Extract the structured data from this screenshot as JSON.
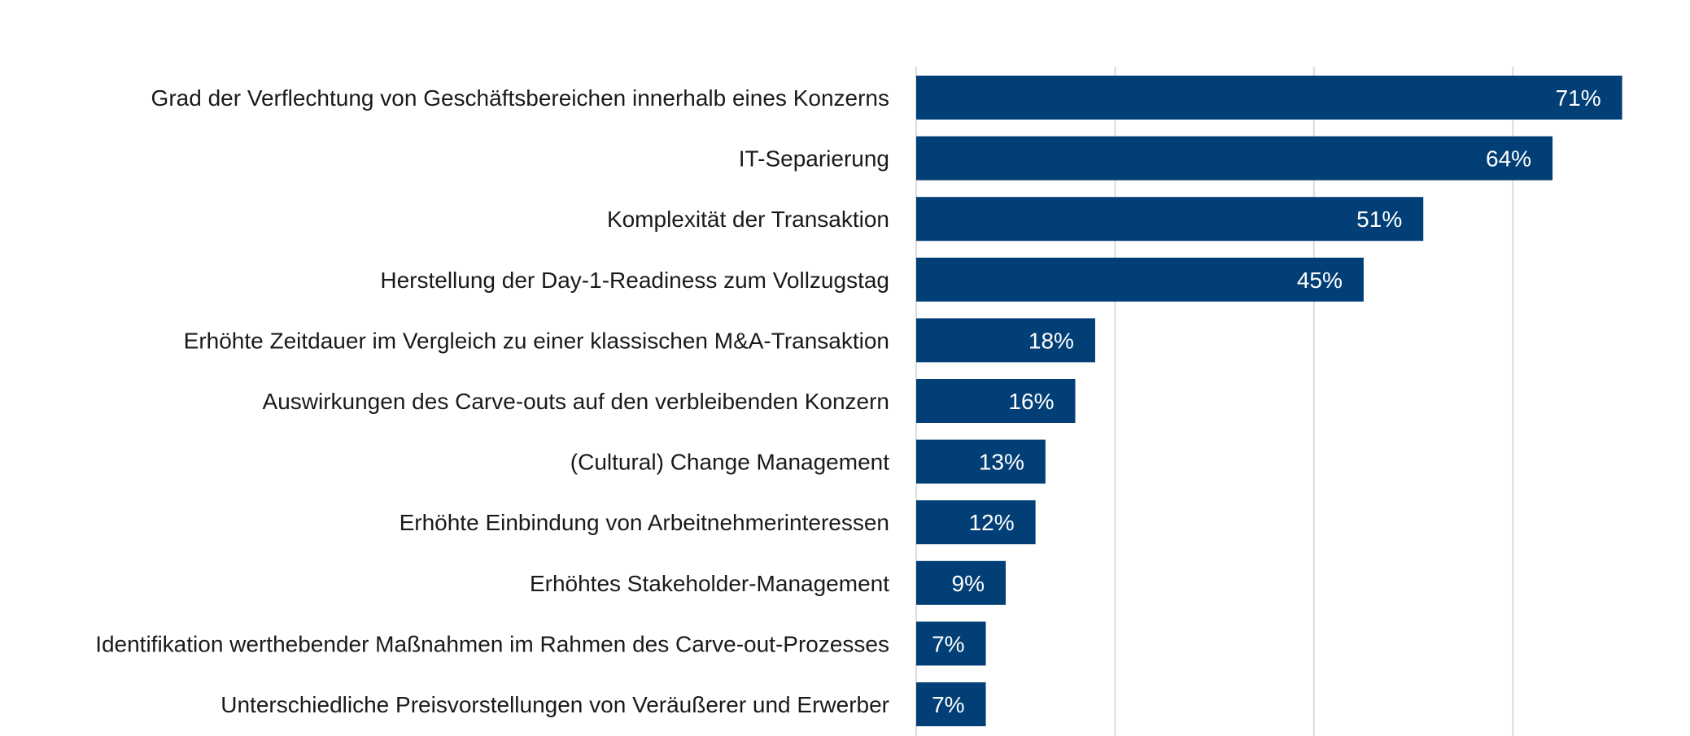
{
  "chart_data": {
    "type": "bar",
    "orientation": "horizontal",
    "categories": [
      "Grad der Verflechtung von Geschäftsbereichen innerhalb eines Konzerns",
      "IT-Separierung",
      "Komplexität der Transaktion",
      "Herstellung der Day-1-Readiness zum Vollzugstag",
      "Erhöhte Zeitdauer im Vergleich zu einer klassischen M&A-Transaktion",
      "Auswirkungen des Carve-outs auf den verbleibenden Konzern",
      "(Cultural) Change Management",
      "Erhöhte Einbindung von Arbeitnehmerinteressen",
      "Erhöhtes Stakeholder-Management",
      "Identifikation werthebender Maßnahmen im Rahmen des Carve-out-Prozesses",
      "Unterschiedliche Preisvorstellungen von Veräußerer und Erwerber"
    ],
    "values": [
      71,
      64,
      51,
      45,
      18,
      16,
      13,
      12,
      9,
      7,
      7
    ],
    "value_labels": [
      "71%",
      "64%",
      "51%",
      "45%",
      "18%",
      "16%",
      "13%",
      "12%",
      "9%",
      "7%",
      "7%"
    ],
    "xlim": [
      0,
      80
    ],
    "gridlines": [
      0,
      20,
      40,
      60
    ],
    "grid": true,
    "color": "#023f76",
    "title": "",
    "xlabel": "",
    "ylabel": ""
  }
}
